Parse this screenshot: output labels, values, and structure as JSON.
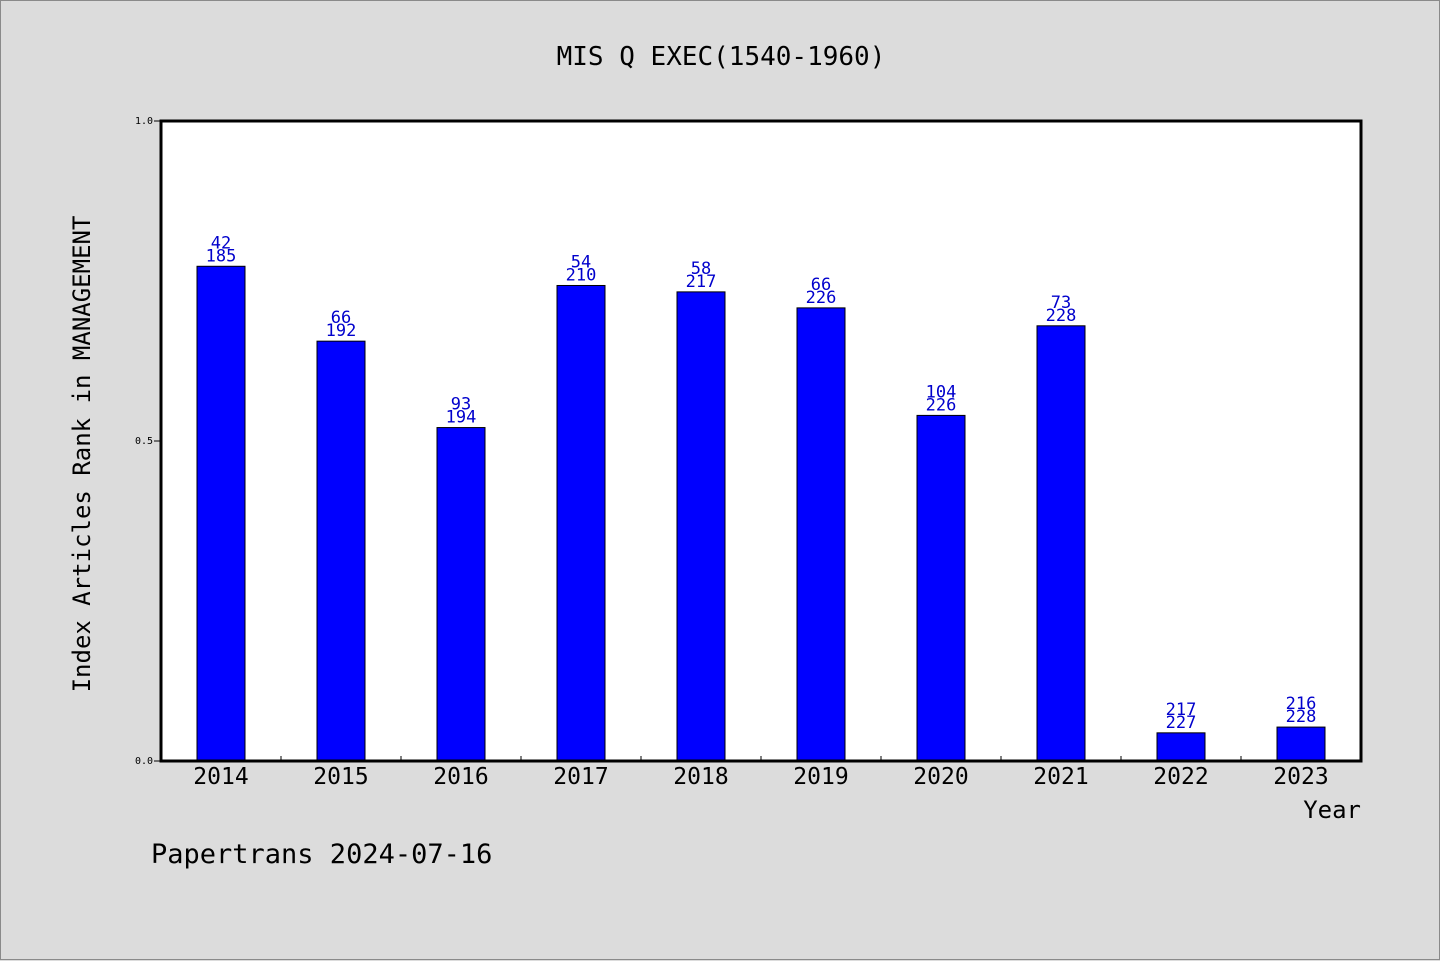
{
  "chart_data": {
    "type": "bar",
    "title": "MIS Q EXEC(1540-1960)",
    "xlabel": "Year",
    "ylabel": "Index Articles Rank in MANAGEMENT",
    "ylim": [
      0,
      1
    ],
    "yticks": [
      "0.0",
      "0.5",
      "1.0"
    ],
    "grid": false,
    "categories": [
      "2014",
      "2015",
      "2016",
      "2017",
      "2018",
      "2019",
      "2020",
      "2021",
      "2022",
      "2023"
    ],
    "values": [
      0.773,
      0.656,
      0.521,
      0.743,
      0.733,
      0.708,
      0.54,
      0.68,
      0.044,
      0.053
    ],
    "labels_top": [
      "42",
      "66",
      "93",
      "54",
      "58",
      "66",
      "104",
      "73",
      "217",
      "216"
    ],
    "labels_bottom": [
      "185",
      "192",
      "194",
      "210",
      "217",
      "226",
      "226",
      "228",
      "227",
      "228"
    ],
    "bar_color": "#0000ff",
    "label_color": "#0000cc"
  },
  "footer": "Papertrans 2024-07-16"
}
